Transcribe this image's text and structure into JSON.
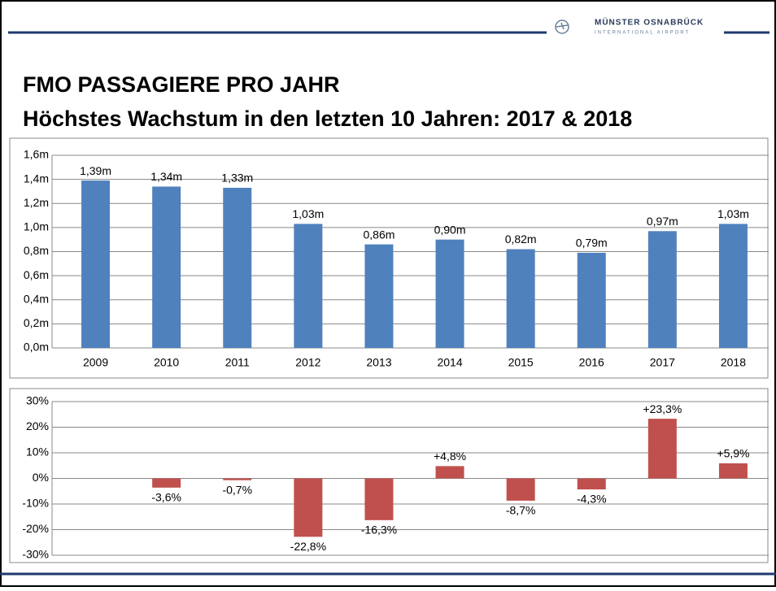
{
  "header": {
    "title": "FMO PASSAGIERE PRO JAHR",
    "subtitle": "Höchstes Wachstum in den letzten 10 Jahren: 2017 & 2018",
    "logo_name": "MÜNSTER OSNABRÜCK",
    "logo_sub": "INTERNATIONAL AIRPORT"
  },
  "chart_data": [
    {
      "type": "bar",
      "categories": [
        "2009",
        "2010",
        "2011",
        "2012",
        "2013",
        "2014",
        "2015",
        "2016",
        "2017",
        "2018"
      ],
      "values": [
        1.39,
        1.34,
        1.33,
        1.03,
        0.86,
        0.9,
        0.82,
        0.79,
        0.97,
        1.03
      ],
      "value_labels": [
        "1,39m",
        "1,34m",
        "1,33m",
        "1,03m",
        "0,86m",
        "0,90m",
        "0,82m",
        "0,79m",
        "0,97m",
        "1,03m"
      ],
      "color": "#4f81bd",
      "ylim": [
        0,
        1.6
      ],
      "yticks": [
        {
          "value": 0,
          "label": "0,0m"
        },
        {
          "value": 0.2,
          "label": "0,2m"
        },
        {
          "value": 0.4,
          "label": "0,4m"
        },
        {
          "value": 0.6,
          "label": "0,6m"
        },
        {
          "value": 0.8,
          "label": "0,8m"
        },
        {
          "value": 1.0,
          "label": "1,0m"
        },
        {
          "value": 1.2,
          "label": "1,2m"
        },
        {
          "value": 1.4,
          "label": "1,4m"
        },
        {
          "value": 1.6,
          "label": "1,6m"
        }
      ],
      "grid": true
    },
    {
      "type": "bar",
      "values": [
        null,
        -3.6,
        -0.7,
        -22.8,
        -16.3,
        4.8,
        -8.7,
        -4.3,
        23.3,
        5.9
      ],
      "value_labels": [
        null,
        "-3,6%",
        "-0,7%",
        "-22,8%",
        "-16,3%",
        "+4,8%",
        "-8,7%",
        "-4,3%",
        "+23,3%",
        "+5,9%"
      ],
      "color": "#c0504d",
      "ylim": [
        -30,
        30
      ],
      "yticks": [
        {
          "value": -30,
          "label": "-30%"
        },
        {
          "value": -20,
          "label": "-20%"
        },
        {
          "value": -10,
          "label": "-10%"
        },
        {
          "value": 0,
          "label": "0%"
        },
        {
          "value": 10,
          "label": "10%"
        },
        {
          "value": 20,
          "label": "20%"
        },
        {
          "value": 30,
          "label": "30%"
        }
      ],
      "grid": true
    }
  ]
}
